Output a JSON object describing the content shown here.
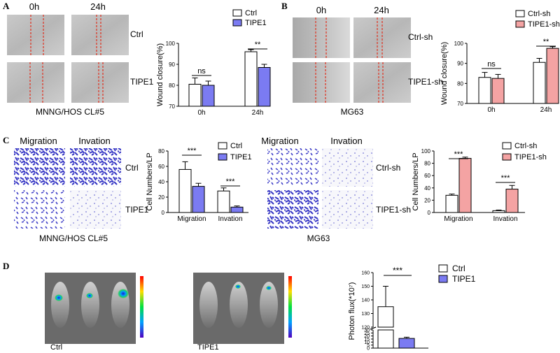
{
  "panel_letters": {
    "a": "A",
    "b": "B",
    "c": "C",
    "d": "D"
  },
  "panel_a": {
    "time_labels": [
      "0h",
      "24h"
    ],
    "row_labels": [
      "Ctrl",
      "TIPE1"
    ],
    "cell_line": "MNNG/HOS CL#5"
  },
  "panel_b": {
    "time_labels": [
      "0h",
      "24h"
    ],
    "row_labels": [
      "Ctrl-sh",
      "TIPE1-sh"
    ],
    "cell_line": "MG63"
  },
  "panel_c_left": {
    "col_labels": [
      "Migration",
      "Invation"
    ],
    "row_labels": [
      "Ctrl",
      "TIPE1"
    ],
    "cell_line": "MNNG/HOS CL#5"
  },
  "panel_c_right": {
    "col_labels": [
      "Migration",
      "Invation"
    ],
    "row_labels": [
      "Ctrl-sh",
      "TIPE1-sh"
    ],
    "cell_line": "MG63"
  },
  "panel_d": {
    "group_labels": [
      "Ctrl",
      "TIPE1"
    ]
  },
  "colors": {
    "ctrl": "#ffffff",
    "tipe1": "#7b7bf2",
    "tipe1_sh": "#f4a3a3",
    "stain": "#3a3ac8",
    "scratch": "#e0301e"
  },
  "chart_data": [
    {
      "id": "wound_a",
      "type": "bar",
      "ylabel": "Wound closure(%)",
      "categories": [
        "0h",
        "24h"
      ],
      "ylim": [
        70,
        100
      ],
      "yticks": [
        70,
        80,
        90,
        100
      ],
      "series": [
        {
          "name": "Ctrl",
          "values": [
            80.5,
            96
          ],
          "errors": [
            3,
            1
          ]
        },
        {
          "name": "TIPE1",
          "values": [
            80,
            88.5
          ],
          "errors": [
            2,
            1.5
          ]
        }
      ],
      "significance": [
        "ns",
        "**"
      ]
    },
    {
      "id": "wound_b",
      "type": "bar",
      "ylabel": "Wound closure(%)",
      "categories": [
        "0h",
        "24h"
      ],
      "ylim": [
        70,
        100
      ],
      "yticks": [
        70,
        80,
        90,
        100
      ],
      "series": [
        {
          "name": "Ctrl-sh",
          "values": [
            83,
            90.5
          ],
          "errors": [
            2.5,
            2
          ]
        },
        {
          "name": "TIPE1-sh",
          "values": [
            82.5,
            97.5
          ],
          "errors": [
            2,
            0.8
          ]
        }
      ],
      "significance": [
        "ns",
        "**"
      ]
    },
    {
      "id": "cells_c_left",
      "type": "bar",
      "ylabel": "Cell Numbers/LP",
      "categories": [
        "Migration",
        "Invation"
      ],
      "ylim": [
        0,
        80
      ],
      "yticks": [
        0,
        20,
        40,
        60,
        80
      ],
      "series": [
        {
          "name": "Ctrl",
          "values": [
            56,
            28
          ],
          "errors": [
            10,
            4
          ]
        },
        {
          "name": "TIPE1",
          "values": [
            34,
            7
          ],
          "errors": [
            4,
            1.5
          ]
        }
      ],
      "significance": [
        "***",
        "***"
      ]
    },
    {
      "id": "cells_c_right",
      "type": "bar",
      "ylabel": "Cell Numbers/LP",
      "categories": [
        "Migration",
        "Invation"
      ],
      "ylim": [
        0,
        100
      ],
      "yticks": [
        0,
        20,
        40,
        60,
        80,
        100
      ],
      "series": [
        {
          "name": "Ctrl-sh",
          "values": [
            28,
            3
          ],
          "errors": [
            2,
            1
          ]
        },
        {
          "name": "TIPE1-sh",
          "values": [
            88,
            38
          ],
          "errors": [
            2,
            6
          ]
        }
      ],
      "significance": [
        "***",
        "***"
      ]
    },
    {
      "id": "photon_d",
      "type": "bar",
      "ylabel": "Photon flux(*10⁷)",
      "categories": [
        ""
      ],
      "ylim": [
        0,
        160
      ],
      "axis_break": [
        30,
        120
      ],
      "yticks": [
        0,
        5,
        10,
        15,
        20,
        25,
        30,
        120,
        130,
        140,
        150,
        160
      ],
      "series": [
        {
          "name": "Ctrl",
          "values": [
            135
          ],
          "errors": [
            15
          ]
        },
        {
          "name": "TIPE1",
          "values": [
            16
          ],
          "errors": [
            2
          ]
        }
      ],
      "significance": [
        "***"
      ]
    }
  ]
}
